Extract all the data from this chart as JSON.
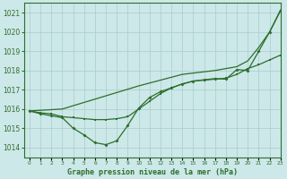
{
  "title": "Graphe pression niveau de la mer (hPa)",
  "background_color": "#cce8e8",
  "grid_color": "#aacccc",
  "line_color": "#2d6e2d",
  "xlim": [
    -0.5,
    23
  ],
  "ylim": [
    1013.5,
    1021.5
  ],
  "yticks": [
    1014,
    1015,
    1016,
    1017,
    1018,
    1019,
    1020,
    1021
  ],
  "xticks": [
    0,
    1,
    2,
    3,
    4,
    5,
    6,
    7,
    8,
    9,
    10,
    11,
    12,
    13,
    14,
    15,
    16,
    17,
    18,
    19,
    20,
    21,
    22,
    23
  ],
  "series_top": {
    "x": [
      0,
      3,
      10,
      14,
      17,
      19,
      20,
      21,
      22,
      23
    ],
    "y": [
      1015.9,
      1016.0,
      1017.2,
      1017.8,
      1018.0,
      1018.2,
      1018.5,
      1019.2,
      1020.0,
      1021.15
    ]
  },
  "series_mid": {
    "x": [
      0,
      1,
      2,
      3,
      4,
      5,
      6,
      7,
      8,
      9,
      10,
      11,
      12,
      13,
      14,
      15,
      16,
      17,
      18,
      19,
      20,
      21,
      22,
      23
    ],
    "y": [
      1015.9,
      1015.8,
      1015.75,
      1015.6,
      1015.55,
      1015.5,
      1015.45,
      1015.45,
      1015.5,
      1015.6,
      1016.0,
      1016.4,
      1016.8,
      1017.1,
      1017.3,
      1017.45,
      1017.5,
      1017.55,
      1017.6,
      1017.8,
      1018.1,
      1018.3,
      1018.55,
      1018.8
    ]
  },
  "series_low": {
    "x": [
      0,
      1,
      2,
      3,
      4,
      5,
      6,
      7,
      8,
      9,
      10,
      11,
      12,
      13,
      14,
      15,
      16,
      17,
      18,
      19,
      20,
      21,
      22,
      23
    ],
    "y": [
      1015.9,
      1015.75,
      1015.65,
      1015.55,
      1015.0,
      1014.65,
      1014.25,
      1014.15,
      1014.35,
      1015.15,
      1016.05,
      1016.6,
      1016.9,
      1017.1,
      1017.3,
      1017.45,
      1017.52,
      1017.58,
      1017.55,
      1018.05,
      1018.0,
      1019.0,
      1020.0,
      1021.1
    ]
  }
}
